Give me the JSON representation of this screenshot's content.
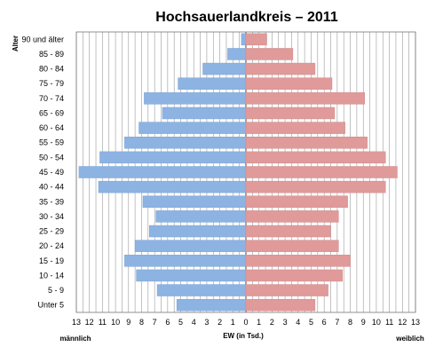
{
  "chart_data": {
    "type": "bar",
    "orientation": "horizontal",
    "subtype": "population-pyramid",
    "title": "Hochsauerlandkreis – 2011",
    "ylabel": "Alter",
    "xlabel": "EW (in Tsd.)",
    "left_label": "männlich",
    "right_label": "weiblich",
    "xlim": [
      -13,
      13
    ],
    "x_ticks": [
      "13",
      "12",
      "11",
      "10",
      "9",
      "8",
      "7",
      "6",
      "5",
      "4",
      "3",
      "2",
      "1",
      "0",
      "1",
      "2",
      "3",
      "4",
      "5",
      "6",
      "7",
      "8",
      "9",
      "10",
      "11",
      "12",
      "13"
    ],
    "grid": true,
    "categories": [
      "Unter 5",
      "5 - 9",
      "10 - 14",
      "15 - 19",
      "20 - 24",
      "25 - 29",
      "30 - 34",
      "35 - 39",
      "40 - 44",
      "45 - 49",
      "50 - 54",
      "55 - 59",
      "60 - 64",
      "65 - 69",
      "70 - 74",
      "75 - 79",
      "80 - 84",
      "85 - 89",
      "90 und älter"
    ],
    "series": [
      {
        "name": "männlich",
        "color": "#8db3e2",
        "values": [
          5.3,
          6.8,
          8.4,
          9.3,
          8.5,
          7.4,
          6.9,
          7.9,
          11.3,
          12.8,
          11.2,
          9.3,
          8.2,
          6.4,
          7.8,
          5.2,
          3.3,
          1.4,
          0.35
        ]
      },
      {
        "name": "weiblich",
        "color": "#e09a9a",
        "values": [
          5.3,
          6.3,
          7.4,
          8.0,
          7.1,
          6.5,
          7.1,
          7.8,
          10.7,
          11.6,
          10.7,
          9.3,
          7.6,
          6.8,
          9.1,
          6.6,
          5.3,
          3.6,
          1.6
        ]
      }
    ]
  }
}
